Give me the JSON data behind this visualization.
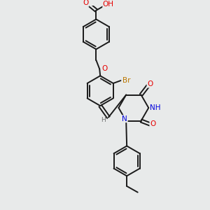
{
  "background_color": "#e8eaea",
  "bond_color": "#1a1a1a",
  "atom_colors": {
    "O": "#e60000",
    "N": "#0000dd",
    "Br": "#bb7700",
    "H": "#707070",
    "C": "#1a1a1a"
  },
  "figsize": [
    3.0,
    3.0
  ],
  "dpi": 100,
  "xlim": [
    0,
    300
  ],
  "ylim": [
    0,
    300
  ]
}
